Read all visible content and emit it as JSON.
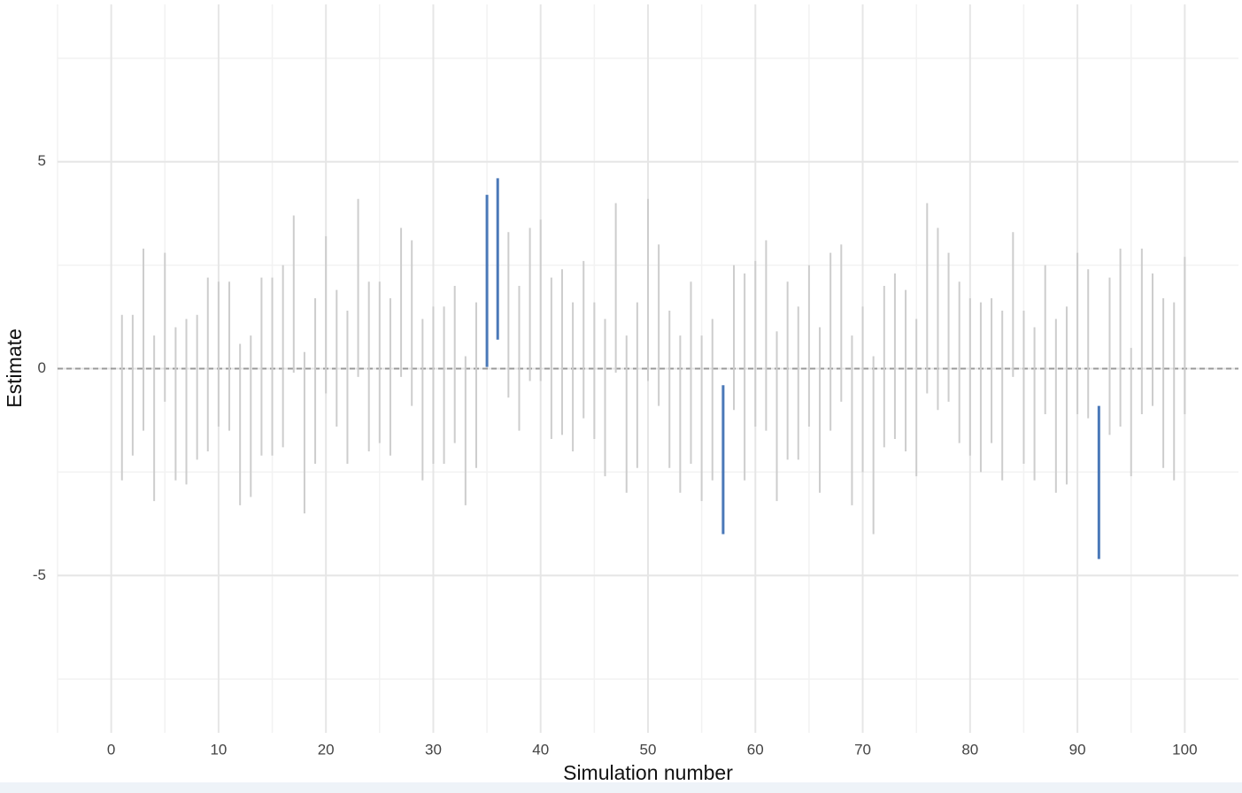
{
  "chart_data": {
    "type": "interval",
    "x_label": "Simulation number",
    "y_label": "Estimate",
    "x": [
      1,
      2,
      3,
      4,
      5,
      6,
      7,
      8,
      9,
      10,
      11,
      12,
      13,
      14,
      15,
      16,
      17,
      18,
      19,
      20,
      21,
      22,
      23,
      24,
      25,
      26,
      27,
      28,
      29,
      30,
      31,
      32,
      33,
      34,
      35,
      36,
      37,
      38,
      39,
      40,
      41,
      42,
      43,
      44,
      45,
      46,
      47,
      48,
      49,
      50,
      51,
      52,
      53,
      54,
      55,
      56,
      57,
      58,
      59,
      60,
      61,
      62,
      63,
      64,
      65,
      66,
      67,
      68,
      69,
      70,
      71,
      72,
      73,
      74,
      75,
      76,
      77,
      78,
      79,
      80,
      81,
      82,
      83,
      84,
      85,
      86,
      87,
      88,
      89,
      90,
      91,
      92,
      93,
      94,
      95,
      96,
      97,
      98,
      99,
      100
    ],
    "low": [
      -2.7,
      -2.1,
      -1.5,
      -3.2,
      -0.8,
      -2.7,
      -2.8,
      -2.2,
      -2.0,
      -1.4,
      -1.5,
      -3.3,
      -3.1,
      -2.1,
      -2.1,
      -1.9,
      -0.1,
      -3.5,
      -2.3,
      -0.6,
      -1.4,
      -2.3,
      -0.2,
      -2.0,
      -1.8,
      -2.1,
      -0.2,
      -0.9,
      -2.7,
      -2.3,
      -2.3,
      -1.8,
      -3.3,
      -2.4,
      0.04,
      0.7,
      -0.7,
      -1.5,
      -0.3,
      -0.3,
      -1.7,
      -1.6,
      -2.0,
      -1.2,
      -1.7,
      -2.6,
      -0.1,
      -3.0,
      -2.4,
      -0.3,
      -0.9,
      -2.4,
      -3.0,
      -2.3,
      -3.2,
      -2.7,
      -4.0,
      -1.0,
      -2.7,
      -1.4,
      -1.5,
      -3.2,
      -2.2,
      -2.2,
      -1.4,
      -3.0,
      -1.5,
      -0.8,
      -3.3,
      -2.5,
      -4.0,
      -1.9,
      -1.7,
      -2.0,
      -2.6,
      -0.6,
      -1.0,
      -0.8,
      -1.8,
      -2.1,
      -2.5,
      -1.8,
      -2.7,
      -0.2,
      -2.3,
      -2.7,
      -1.1,
      -3.0,
      -2.8,
      -1.1,
      -1.2,
      -4.6,
      -1.6,
      -1.4,
      -2.6,
      -1.1,
      -0.9,
      -2.4,
      -2.7,
      -1.1
    ],
    "high": [
      1.3,
      1.3,
      2.9,
      0.8,
      2.8,
      1.0,
      1.2,
      1.3,
      2.2,
      2.1,
      2.1,
      0.6,
      0.8,
      2.2,
      2.2,
      2.5,
      3.7,
      0.4,
      1.7,
      3.2,
      1.9,
      1.4,
      4.1,
      2.1,
      2.1,
      1.7,
      3.4,
      3.1,
      1.2,
      1.5,
      1.5,
      2.0,
      0.3,
      1.6,
      4.2,
      4.6,
      3.3,
      2.0,
      3.4,
      3.6,
      2.2,
      2.4,
      1.6,
      2.6,
      1.6,
      1.2,
      4.0,
      0.8,
      1.6,
      4.1,
      3.0,
      1.4,
      0.8,
      2.1,
      0.8,
      1.2,
      -0.4,
      2.5,
      2.3,
      2.6,
      3.1,
      0.9,
      2.1,
      1.5,
      2.5,
      1.0,
      2.8,
      3.0,
      0.8,
      1.5,
      0.3,
      2.0,
      2.3,
      1.9,
      1.2,
      4.0,
      3.4,
      2.8,
      2.1,
      1.7,
      1.6,
      1.7,
      1.4,
      3.3,
      1.4,
      1.0,
      2.5,
      1.2,
      1.5,
      2.8,
      2.4,
      -0.9,
      2.2,
      2.9,
      0.5,
      2.9,
      2.3,
      1.7,
      1.6,
      2.7
    ],
    "color": "#cdcdcd",
    "highlight_color": "#4a78b8",
    "reference_line": 0,
    "xlim": [
      -5,
      105
    ],
    "ylim": [
      -8.8,
      8.8
    ],
    "xticks": [
      0,
      10,
      20,
      30,
      40,
      50,
      60,
      70,
      80,
      90,
      100
    ],
    "yticks": [
      -5,
      0,
      5
    ],
    "grid": true
  }
}
